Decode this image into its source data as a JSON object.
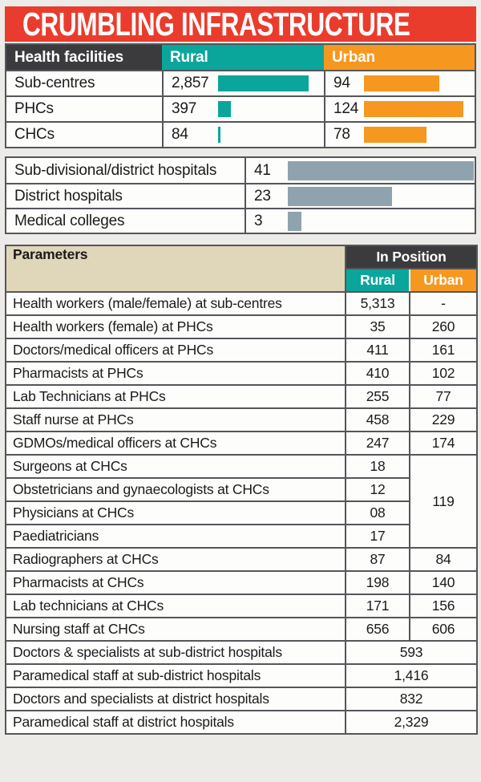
{
  "title": "CRUMBLING INFRASTRUCTURE",
  "colors": {
    "title_bg": "#ea3c2d",
    "header_dark": "#3b3b3d",
    "rural_teal": "#0ba69b",
    "urban_orange": "#f6981f",
    "parameters_beige": "#e0d6ba",
    "hospital_bar_gray": "#8fa3ae"
  },
  "facilities_table": {
    "col_label": "Health facilities",
    "col_rural": "Rural",
    "col_urban": "Urban",
    "rows": [
      {
        "label": "Sub-centres",
        "rural": "2,857",
        "urban": "94"
      },
      {
        "label": "PHCs",
        "rural": "397",
        "urban": "124"
      },
      {
        "label": "CHCs",
        "rural": "84",
        "urban": "78"
      }
    ]
  },
  "hospitals_table": {
    "rows": [
      {
        "label": "Sub-divisional/district hospitals",
        "value": "41"
      },
      {
        "label": "District hospitals",
        "value": "23"
      },
      {
        "label": "Medical colleges",
        "value": "3"
      }
    ]
  },
  "parameters_table": {
    "title": "Parameters",
    "group_header": "In Position",
    "col_rural": "Rural",
    "col_urban": "Urban",
    "rows": [
      {
        "label": "Health workers (male/female) at sub-centres",
        "rural": "5,313",
        "urban": "-"
      },
      {
        "label": "Health workers (female) at PHCs",
        "rural": "35",
        "urban": "260"
      },
      {
        "label": "Doctors/medical officers at PHCs",
        "rural": "411",
        "urban": "161"
      },
      {
        "label": "Pharmacists at PHCs",
        "rural": "410",
        "urban": "102"
      },
      {
        "label": "Lab Technicians at PHCs",
        "rural": "255",
        "urban": "77"
      },
      {
        "label": "Staff nurse at PHCs",
        "rural": "458",
        "urban": "229"
      },
      {
        "label": "GDMOs/medical officers at CHCs",
        "rural": "247",
        "urban": "174"
      },
      {
        "label": "Surgeons at CHCs",
        "rural": "18",
        "urban": "119"
      },
      {
        "label": "Obstetricians and gynaecologists at CHCs",
        "rural": "12"
      },
      {
        "label": "Physicians at CHCs",
        "rural": "08"
      },
      {
        "label": "Paediatricians",
        "rural": "17"
      },
      {
        "label": "Radiographers at CHCs",
        "rural": "87",
        "urban": "84"
      },
      {
        "label": "Pharmacists at CHCs",
        "rural": "198",
        "urban": "140"
      },
      {
        "label": "Lab technicians at CHCs",
        "rural": "171",
        "urban": "156"
      },
      {
        "label": "Nursing staff at CHCs",
        "rural": "656",
        "urban": "606"
      },
      {
        "label": "Doctors & specialists at sub-district hospitals",
        "value": "593"
      },
      {
        "label": "Paramedical staff at sub-district hospitals",
        "value": "1,416"
      },
      {
        "label": "Doctors and specialists at district hospitals",
        "value": "832"
      },
      {
        "label": "Paramedical staff at district hospitals",
        "value": "2,329"
      }
    ]
  },
  "chart_data": [
    {
      "type": "bar",
      "title": "Health facilities",
      "categories": [
        "Sub-centres",
        "PHCs",
        "CHCs"
      ],
      "series": [
        {
          "name": "Rural",
          "values": [
            2857,
            397,
            84
          ]
        },
        {
          "name": "Urban",
          "values": [
            94,
            124,
            78
          ]
        }
      ],
      "layout": "horizontal bars inline in table rows, rural and urban drawn on independent scales"
    },
    {
      "type": "bar",
      "title": "Hospitals",
      "categories": [
        "Sub-divisional/district hospitals",
        "District hospitals",
        "Medical colleges"
      ],
      "values": [
        41,
        23,
        3
      ],
      "layout": "horizontal gray bars inline in table rows"
    },
    {
      "type": "table",
      "title": "Parameters — In Position",
      "columns": [
        "Parameter",
        "Rural",
        "Urban"
      ],
      "notes": "Urban value 119 is merged across Surgeons, Obstetricians, Physicians and Paediatricians rows; last four rows have a single merged value across Rural and Urban"
    }
  ]
}
